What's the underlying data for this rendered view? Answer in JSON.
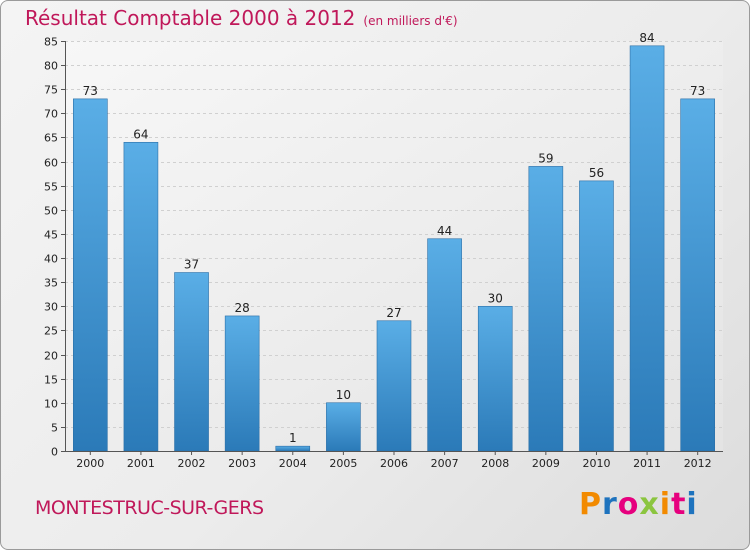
{
  "header": {
    "title": "Résultat Comptable 2000 à 2012",
    "subtitle": "(en milliers d'€)"
  },
  "footer": {
    "commune": "MONTESTRUC-SUR-GERS",
    "logo_letters": [
      "P",
      "r",
      "o",
      "x",
      "i",
      "t",
      "i"
    ],
    "logo_colors": [
      "#f28a00",
      "#1e73be",
      "#e6007e",
      "#8bc53f",
      "#f28a00",
      "#e6007e",
      "#1e73be"
    ]
  },
  "colors": {
    "bar_top": "#5aaee6",
    "bar_bottom": "#2b7ab8",
    "grid": "#d0d0d0"
  },
  "chart_data": {
    "type": "bar",
    "categories": [
      "2000",
      "2001",
      "2002",
      "2003",
      "2004",
      "2005",
      "2006",
      "2007",
      "2008",
      "2009",
      "2010",
      "2011",
      "2012"
    ],
    "values": [
      73,
      64,
      37,
      28,
      1,
      10,
      27,
      44,
      30,
      59,
      56,
      84,
      73
    ],
    "title": "Résultat Comptable 2000 à 2012",
    "xlabel": "",
    "ylabel": "",
    "ylim": [
      0,
      85
    ],
    "yticks": [
      0,
      5,
      10,
      15,
      20,
      25,
      30,
      35,
      40,
      45,
      50,
      55,
      60,
      65,
      70,
      75,
      80,
      85
    ],
    "grid": true,
    "legend": "none"
  }
}
